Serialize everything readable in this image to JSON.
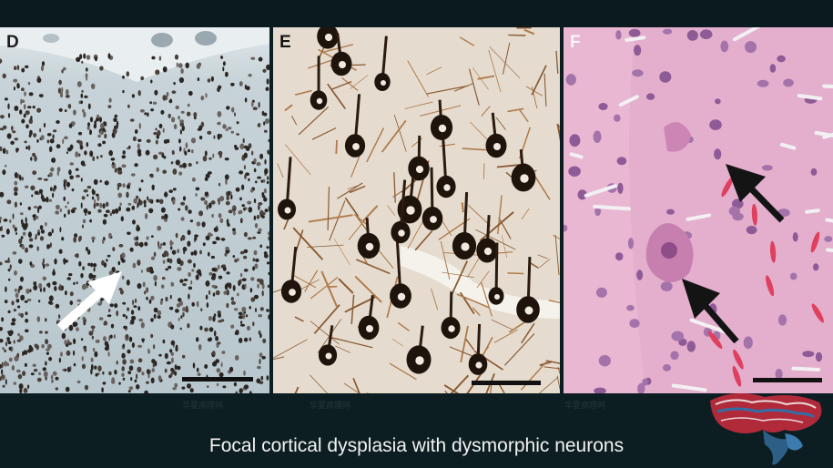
{
  "panels": {
    "d": {
      "label": "D"
    },
    "e": {
      "label": "E"
    },
    "f": {
      "label": "F"
    }
  },
  "caption": "Focal cortical dysplasia with dysmorphic neurons",
  "watermark": "华夏病理网",
  "colors": {
    "background": "#0d1e23",
    "panel_d_bg": "#c8d3d6",
    "panel_e_bg": "#e4dbcd",
    "panel_f_bg": "#e4aecd",
    "caption_text": "#f2f2f2"
  },
  "icons": [
    "arrow-white",
    "arrow-black",
    "brain-logo"
  ]
}
